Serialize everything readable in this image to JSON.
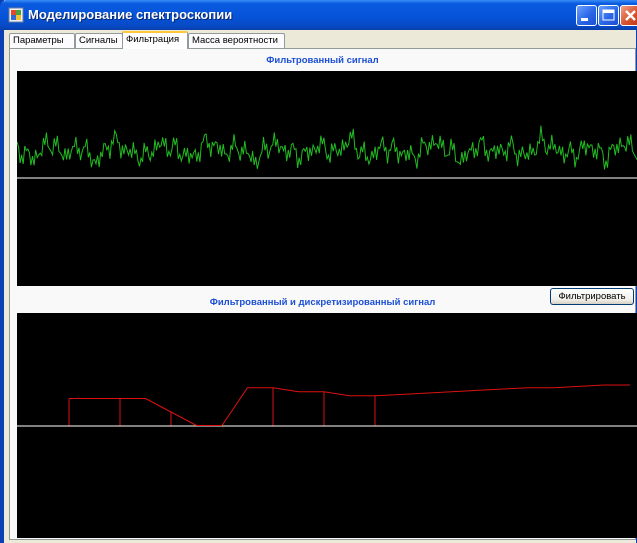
{
  "window": {
    "title": "Моделирование спектроскопии"
  },
  "tabs": [
    {
      "label": "Параметры",
      "active": false
    },
    {
      "label": "Сигналы",
      "active": false
    },
    {
      "label": "Фильтрация",
      "active": true
    },
    {
      "label": "Масса вероятности",
      "active": false
    }
  ],
  "top_panel": {
    "title": "Фильтрованный сигнал"
  },
  "bottom_panel": {
    "title": "Фильтрованный и дискретизированный сигнал"
  },
  "filter_button": {
    "label": "Фильтрировать"
  },
  "colors": {
    "plot_background": "#000000",
    "axis_line": "#FFFFFF",
    "filtered_signal": "#22BB22",
    "discrete_signal": "#DD1111",
    "panel_title": "#1B4FD6"
  },
  "chart_data": [
    {
      "type": "line",
      "series": [
        {
          "color": "#22BB22",
          "values": [
            0.28,
            0.18,
            0.34,
            0.22,
            0.3,
            0.15,
            0.36,
            0.25,
            0.2,
            0.32,
            0.27,
            0.19,
            0.35,
            0.24,
            0.29,
            0.16,
            0.33,
            0.26,
            0.21,
            0.31,
            0.23,
            0.37,
            0.18,
            0.3,
            0.25,
            0.2,
            0.34,
            0.28,
            0.17,
            0.32,
            0.24,
            0.29,
            0.2,
            0.35,
            0.26,
            0.22,
            0.31,
            0.19,
            0.33,
            0.27
          ]
        }
      ],
      "ylim": [
        -1,
        1
      ]
    },
    {
      "type": "line",
      "series": [
        {
          "color": "#DD1111",
          "step_values": [
            0.2,
            0.2,
            0.2,
            0.2,
            0.1,
            0.0,
            0.0,
            0.28,
            0.28,
            0.25,
            0.25,
            0.22,
            0.22,
            0.23,
            0.24,
            0.25,
            0.26,
            0.27,
            0.28,
            0.28,
            0.29,
            0.3,
            0.3,
            0.31
          ]
        }
      ],
      "ylim": [
        -1,
        1
      ]
    }
  ]
}
